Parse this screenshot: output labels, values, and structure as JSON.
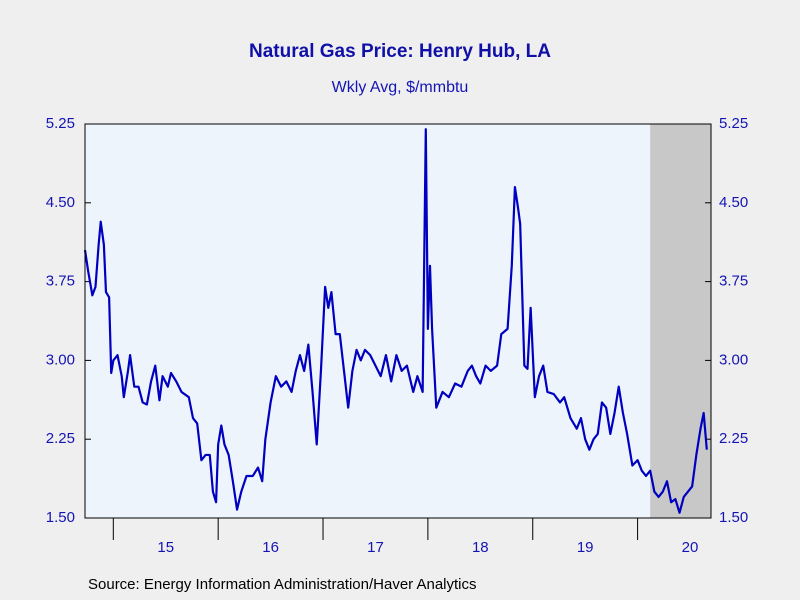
{
  "chart_data": {
    "type": "line",
    "title": "Natural Gas Price: Henry Hub, LA",
    "subtitle": "Wkly Avg, $/mmbtu",
    "source": "Source:  Energy Information Administration/Haver Analytics",
    "xlim": [
      2014.73,
      2020.7
    ],
    "xticks": [
      {
        "value": 2015.5,
        "label": "15"
      },
      {
        "value": 2016.5,
        "label": "16"
      },
      {
        "value": 2017.5,
        "label": "17"
      },
      {
        "value": 2018.5,
        "label": "18"
      },
      {
        "value": 2019.5,
        "label": "19"
      },
      {
        "value": 2020.5,
        "label": "20"
      }
    ],
    "ylim": [
      1.5,
      5.25
    ],
    "yticks": [
      {
        "value": 1.5,
        "label": "1.50"
      },
      {
        "value": 2.25,
        "label": "2.25"
      },
      {
        "value": 3,
        "label": "3.00"
      },
      {
        "value": 3.75,
        "label": "3.75"
      },
      {
        "value": 4.5,
        "label": "4.50"
      },
      {
        "value": 5.25,
        "label": "5.25"
      }
    ],
    "shade": [
      2020.12,
      2020.7
    ],
    "shade_color": "#c8c8c8",
    "series": [
      {
        "color": "#0000c0",
        "x": [
          2014.73,
          2014.76,
          2014.8,
          2014.83,
          2014.86,
          2014.88,
          2014.91,
          2014.93,
          2014.96,
          2014.98,
          2015.0,
          2015.04,
          2015.08,
          2015.1,
          2015.14,
          2015.16,
          2015.2,
          2015.24,
          2015.28,
          2015.32,
          2015.36,
          2015.4,
          2015.44,
          2015.47,
          2015.52,
          2015.55,
          2015.6,
          2015.65,
          2015.72,
          2015.76,
          2015.8,
          2015.84,
          2015.88,
          2015.92,
          2015.95,
          2015.98,
          2016.0,
          2016.03,
          2016.06,
          2016.1,
          2016.14,
          2016.18,
          2016.22,
          2016.27,
          2016.33,
          2016.38,
          2016.42,
          2016.45,
          2016.5,
          2016.55,
          2016.6,
          2016.65,
          2016.7,
          2016.74,
          2016.78,
          2016.82,
          2016.86,
          2016.9,
          2016.94,
          2016.98,
          2017.02,
          2017.05,
          2017.08,
          2017.12,
          2017.16,
          2017.2,
          2017.24,
          2017.28,
          2017.32,
          2017.36,
          2017.4,
          2017.45,
          2017.5,
          2017.55,
          2017.6,
          2017.65,
          2017.7,
          2017.75,
          2017.8,
          2017.86,
          2017.9,
          2017.95,
          2017.98,
          2018.0,
          2018.02,
          2018.04,
          2018.08,
          2018.14,
          2018.2,
          2018.26,
          2018.32,
          2018.38,
          2018.42,
          2018.46,
          2018.5,
          2018.55,
          2018.6,
          2018.66,
          2018.7,
          2018.76,
          2018.8,
          2018.83,
          2018.86,
          2018.88,
          2018.92,
          2018.95,
          2018.98,
          2019.02,
          2019.06,
          2019.1,
          2019.14,
          2019.2,
          2019.26,
          2019.3,
          2019.36,
          2019.42,
          2019.46,
          2019.5,
          2019.54,
          2019.58,
          2019.62,
          2019.66,
          2019.7,
          2019.74,
          2019.78,
          2019.82,
          2019.86,
          2019.9,
          2019.95,
          2020.0,
          2020.04,
          2020.08,
          2020.12,
          2020.16,
          2020.2,
          2020.24,
          2020.28,
          2020.32,
          2020.36,
          2020.4,
          2020.44,
          2020.48,
          2020.52,
          2020.56,
          2020.6,
          2020.63,
          2020.66
        ],
        "values": [
          4.05,
          3.85,
          3.62,
          3.7,
          4.1,
          4.32,
          4.1,
          3.65,
          3.6,
          2.88,
          3.0,
          3.05,
          2.85,
          2.65,
          2.9,
          3.05,
          2.75,
          2.75,
          2.6,
          2.58,
          2.8,
          2.95,
          2.62,
          2.85,
          2.75,
          2.88,
          2.8,
          2.7,
          2.65,
          2.45,
          2.4,
          2.05,
          2.1,
          2.1,
          1.75,
          1.65,
          2.2,
          2.38,
          2.2,
          2.1,
          1.85,
          1.58,
          1.75,
          1.9,
          1.9,
          1.98,
          1.85,
          2.25,
          2.6,
          2.85,
          2.75,
          2.8,
          2.7,
          2.9,
          3.05,
          2.9,
          3.15,
          2.7,
          2.2,
          2.9,
          3.7,
          3.5,
          3.65,
          3.25,
          3.25,
          2.9,
          2.55,
          2.9,
          3.1,
          3.0,
          3.1,
          3.05,
          2.95,
          2.85,
          3.05,
          2.8,
          3.05,
          2.9,
          2.95,
          2.7,
          2.85,
          2.7,
          5.2,
          3.3,
          3.9,
          3.3,
          2.55,
          2.7,
          2.65,
          2.78,
          2.75,
          2.9,
          2.95,
          2.85,
          2.78,
          2.95,
          2.9,
          2.95,
          3.25,
          3.3,
          3.9,
          4.65,
          4.45,
          4.3,
          2.95,
          2.92,
          3.5,
          2.65,
          2.85,
          2.95,
          2.7,
          2.68,
          2.6,
          2.65,
          2.45,
          2.35,
          2.45,
          2.25,
          2.15,
          2.25,
          2.3,
          2.6,
          2.55,
          2.3,
          2.5,
          2.75,
          2.5,
          2.3,
          2.0,
          2.05,
          1.95,
          1.9,
          1.95,
          1.75,
          1.7,
          1.75,
          1.85,
          1.65,
          1.68,
          1.55,
          1.7,
          1.75,
          1.8,
          2.1,
          2.35,
          2.5,
          2.15
        ]
      }
    ]
  }
}
